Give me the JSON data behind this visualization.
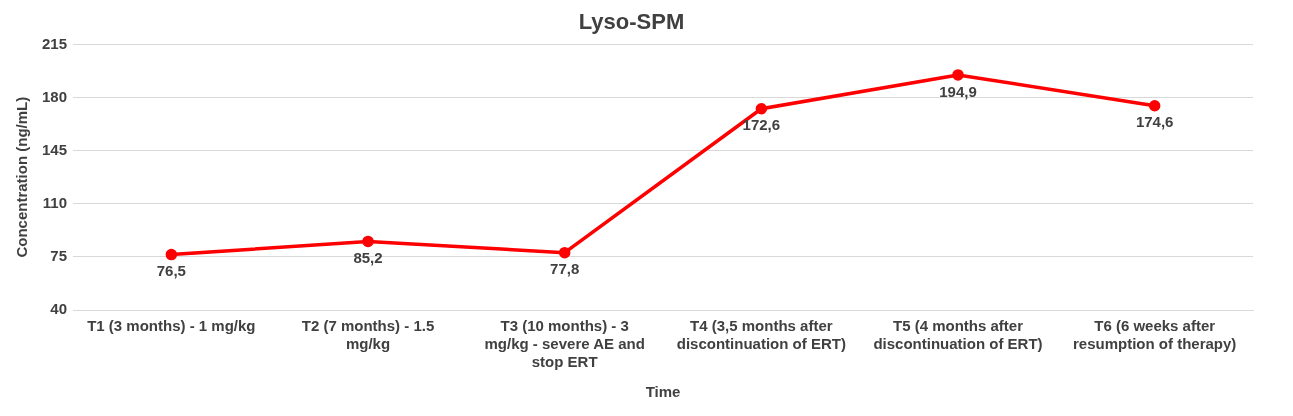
{
  "chart_data": {
    "type": "line",
    "title": "Lyso-SPM",
    "xlabel": "Time",
    "ylabel": "Concentration (ng/mL)",
    "categories": [
      "T1 (3 months) - 1 mg/kg",
      "T2 (7 months) - 1.5 mg/kg",
      "T3 (10 months) - 3 mg/kg - severe AE and stop ERT",
      "T4 (3,5 months after discontinuation of ERT)",
      "T5 (4 months after discontinuation of ERT)",
      "T6 (6 weeks after resumption of therapy)"
    ],
    "series": [
      {
        "color": "#ff0000",
        "values": [
          76.5,
          85.2,
          77.8,
          172.6,
          194.9,
          174.6
        ],
        "value_labels": [
          "76,5",
          "85,2",
          "77,8",
          "172,6",
          "194,9",
          "174,6"
        ]
      }
    ],
    "ylim": [
      40,
      215
    ],
    "yticks": [
      40,
      75,
      110,
      145,
      180,
      215
    ],
    "grid": "y",
    "legend": false,
    "marker": "circle",
    "line_style": "solid"
  }
}
